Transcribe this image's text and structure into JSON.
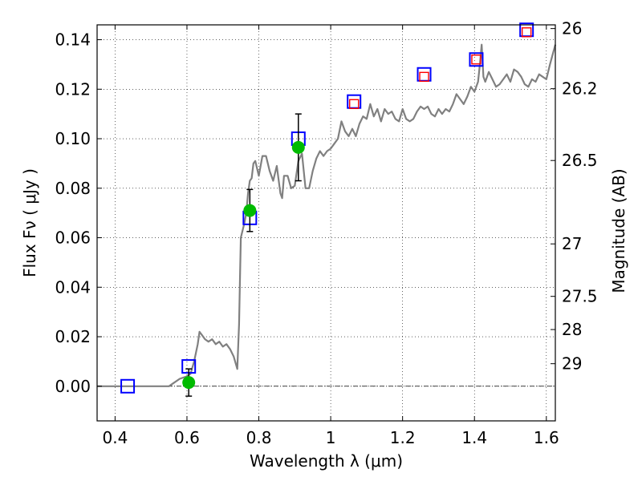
{
  "chart_data": {
    "type": "scatter",
    "xlabel": "Wavelength  λ (μm)",
    "ylabel": "Flux  Fν  ( μJy )",
    "y2label": "Magnitude (AB)",
    "xlim": [
      0.35,
      1.625
    ],
    "ylim": [
      -0.014,
      0.146
    ],
    "xticks": [
      {
        "value": 0.4,
        "label": "0.4"
      },
      {
        "value": 0.6,
        "label": "0.6"
      },
      {
        "value": 0.8,
        "label": "0.8"
      },
      {
        "value": 1.0,
        "label": "1"
      },
      {
        "value": 1.2,
        "label": "1.2"
      },
      {
        "value": 1.4,
        "label": "1.4"
      },
      {
        "value": 1.6,
        "label": "1.6"
      }
    ],
    "yticks": [
      {
        "value": 0.0,
        "label": "0.00"
      },
      {
        "value": 0.02,
        "label": "0.02"
      },
      {
        "value": 0.04,
        "label": "0.04"
      },
      {
        "value": 0.06,
        "label": "0.06"
      },
      {
        "value": 0.08,
        "label": "0.08"
      },
      {
        "value": 0.1,
        "label": "0.10"
      },
      {
        "value": 0.12,
        "label": "0.12"
      },
      {
        "value": 0.14,
        "label": "0.14"
      }
    ],
    "mag_ticks": [
      {
        "flux": 0.1445,
        "label": "26"
      },
      {
        "flux": 0.1202,
        "label": "26.2"
      },
      {
        "flux": 0.0912,
        "label": "26.5"
      },
      {
        "flux": 0.0575,
        "label": "27"
      },
      {
        "flux": 0.0363,
        "label": "27.5"
      },
      {
        "flux": 0.0229,
        "label": "28"
      },
      {
        "flux": 0.0091,
        "label": "29"
      }
    ],
    "grid": true,
    "series": [
      {
        "kind": "line",
        "color": "#808080",
        "x": [
          0.35,
          0.55,
          0.56,
          0.58,
          0.6,
          0.61,
          0.62,
          0.63,
          0.635,
          0.64,
          0.65,
          0.66,
          0.67,
          0.68,
          0.69,
          0.7,
          0.71,
          0.72,
          0.73,
          0.74,
          0.745,
          0.748,
          0.75,
          0.76,
          0.765,
          0.77,
          0.775,
          0.78,
          0.785,
          0.79,
          0.8,
          0.81,
          0.82,
          0.83,
          0.84,
          0.85,
          0.86,
          0.865,
          0.87,
          0.88,
          0.89,
          0.9,
          0.91,
          0.92,
          0.93,
          0.94,
          0.95,
          0.96,
          0.97,
          0.98,
          0.99,
          1.0,
          1.01,
          1.02,
          1.03,
          1.04,
          1.05,
          1.06,
          1.07,
          1.08,
          1.09,
          1.1,
          1.11,
          1.12,
          1.13,
          1.14,
          1.15,
          1.16,
          1.17,
          1.18,
          1.19,
          1.2,
          1.21,
          1.22,
          1.23,
          1.24,
          1.25,
          1.26,
          1.27,
          1.28,
          1.29,
          1.3,
          1.31,
          1.32,
          1.33,
          1.34,
          1.35,
          1.36,
          1.37,
          1.38,
          1.39,
          1.4,
          1.41,
          1.415,
          1.42,
          1.425,
          1.43,
          1.44,
          1.45,
          1.46,
          1.47,
          1.48,
          1.49,
          1.5,
          1.51,
          1.52,
          1.53,
          1.54,
          1.55,
          1.56,
          1.57,
          1.58,
          1.59,
          1.6,
          1.61,
          1.625
        ],
        "y": [
          0.0,
          0.0,
          0.001,
          0.003,
          0.004,
          0.005,
          0.01,
          0.017,
          0.022,
          0.021,
          0.019,
          0.018,
          0.019,
          0.017,
          0.018,
          0.016,
          0.017,
          0.015,
          0.012,
          0.007,
          0.025,
          0.046,
          0.06,
          0.066,
          0.07,
          0.078,
          0.083,
          0.084,
          0.09,
          0.091,
          0.085,
          0.093,
          0.093,
          0.087,
          0.083,
          0.089,
          0.078,
          0.076,
          0.085,
          0.085,
          0.08,
          0.081,
          0.091,
          0.094,
          0.08,
          0.08,
          0.087,
          0.092,
          0.095,
          0.093,
          0.095,
          0.096,
          0.098,
          0.1,
          0.107,
          0.103,
          0.101,
          0.104,
          0.101,
          0.106,
          0.109,
          0.108,
          0.114,
          0.109,
          0.112,
          0.107,
          0.112,
          0.11,
          0.111,
          0.108,
          0.107,
          0.112,
          0.108,
          0.107,
          0.108,
          0.111,
          0.113,
          0.112,
          0.113,
          0.11,
          0.109,
          0.112,
          0.11,
          0.112,
          0.111,
          0.114,
          0.118,
          0.116,
          0.114,
          0.117,
          0.121,
          0.119,
          0.123,
          0.13,
          0.138,
          0.125,
          0.123,
          0.127,
          0.124,
          0.121,
          0.122,
          0.124,
          0.126,
          0.123,
          0.128,
          0.127,
          0.125,
          0.122,
          0.121,
          0.124,
          0.123,
          0.126,
          0.125,
          0.124,
          0.13,
          0.138
        ]
      },
      {
        "kind": "squares-blue",
        "color": "#0000ff",
        "x": [
          0.435,
          0.605,
          0.775,
          0.91,
          1.065,
          1.26,
          1.405,
          1.545
        ],
        "y": [
          0.0,
          0.008,
          0.068,
          0.1,
          0.115,
          0.126,
          0.132,
          0.144
        ]
      },
      {
        "kind": "squares-red",
        "color": "#ff0000",
        "x": [
          1.065,
          1.26,
          1.405,
          1.545
        ],
        "y": [
          0.114,
          0.125,
          0.132,
          0.143
        ]
      },
      {
        "kind": "points-green",
        "color": "#00bb00",
        "x": [
          0.605,
          0.775,
          0.91
        ],
        "y": [
          0.0015,
          0.071,
          0.0965
        ],
        "yerr": [
          0.0055,
          0.0085,
          0.0135
        ]
      }
    ]
  }
}
